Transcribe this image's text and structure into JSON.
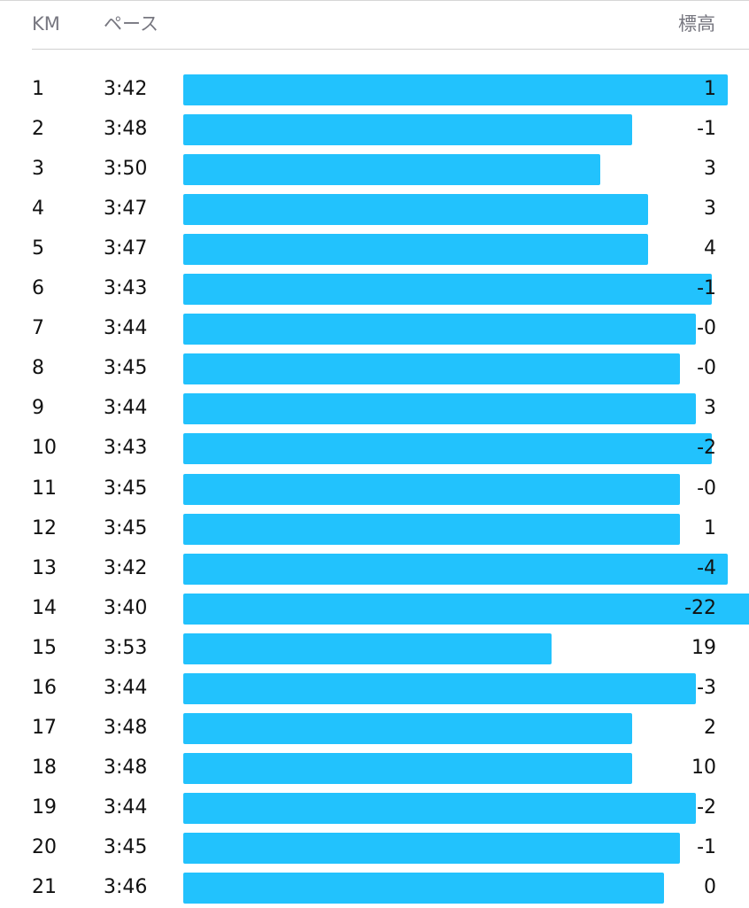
{
  "header": {
    "km_label": "KM",
    "pace_label": "ペース",
    "elevation_label": "標高"
  },
  "colors": {
    "bar": "#22c2fd",
    "header_text": "#777780",
    "text": "#111111"
  },
  "chart_data": {
    "type": "bar",
    "orientation": "horizontal",
    "categories": [
      "1",
      "2",
      "3",
      "4",
      "5",
      "6",
      "7",
      "8",
      "9",
      "10",
      "11",
      "12",
      "13",
      "14",
      "15",
      "16",
      "17",
      "18",
      "19",
      "20",
      "21"
    ],
    "series": [
      {
        "values": [
          "3:42",
          "3:48",
          "3:50",
          "3:47",
          "3:47",
          "3:43",
          "3:44",
          "3:45",
          "3:44",
          "3:43",
          "3:45",
          "3:45",
          "3:42",
          "3:40",
          "3:53",
          "3:44",
          "3:48",
          "3:48",
          "3:44",
          "3:45",
          "3:46"
        ]
      }
    ],
    "elevation": [
      "1",
      "-1",
      "3",
      "3",
      "4",
      "-1",
      "-0",
      "-0",
      "3",
      "-2",
      "-0",
      "1",
      "-4",
      "-22",
      "19",
      "-3",
      "2",
      "10",
      "-2",
      "-1",
      "0"
    ],
    "xlabel": "",
    "ylabel": ""
  }
}
